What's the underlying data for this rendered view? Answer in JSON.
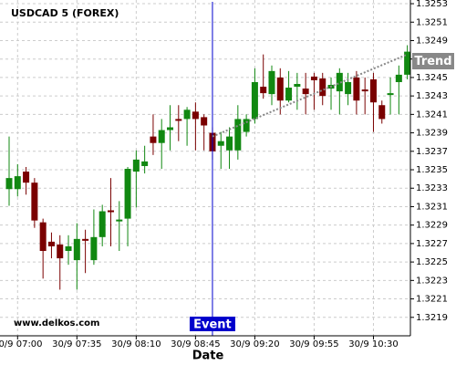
{
  "chart_data": {
    "type": "candlestick",
    "title": "USDCAD 5 (FOREX)",
    "watermark": "www.delkos.com",
    "x_label": "Date",
    "categories": [
      null,
      "30/9 07:00",
      null,
      null,
      null,
      null,
      null,
      null,
      "30/9 07:35",
      null,
      null,
      null,
      null,
      null,
      null,
      "30/9 08:10",
      null,
      null,
      null,
      null,
      null,
      null,
      "30/9 08:45",
      null,
      null,
      null,
      null,
      null,
      null,
      "30/9 09:20",
      null,
      null,
      null,
      null,
      null,
      null,
      "30/9 09:55",
      null,
      null,
      null,
      null,
      null,
      null,
      "30/9 10:30",
      null,
      null,
      null,
      null
    ],
    "open": [
      1.32329,
      1.32329,
      1.32348,
      1.32336,
      1.32293,
      1.32272,
      1.32269,
      1.32262,
      1.32252,
      1.32275,
      1.32252,
      1.32277,
      1.32306,
      1.32294,
      1.32297,
      1.32348,
      1.32354,
      1.32386,
      1.32379,
      1.32393,
      1.32405,
      1.32405,
      1.32413,
      1.32407,
      1.3239,
      1.32376,
      1.32371,
      1.32371,
      1.32391,
      1.32405,
      1.3244,
      1.32432,
      1.3245,
      1.32425,
      1.3244,
      1.32438,
      1.32451,
      1.32449,
      1.32438,
      1.32435,
      1.32432,
      1.3245,
      1.32437,
      1.32448,
      1.3242,
      1.32431,
      1.32445,
      1.32453
    ],
    "high": [
      1.32386,
      1.32356,
      1.32353,
      1.32341,
      1.32297,
      1.32282,
      1.32279,
      1.32279,
      1.32292,
      1.32285,
      1.32307,
      1.32312,
      1.32341,
      1.32316,
      1.32353,
      1.32371,
      1.32376,
      1.3241,
      1.32405,
      1.3242,
      1.3242,
      1.32418,
      1.32423,
      1.3241,
      1.32396,
      1.32391,
      1.32396,
      1.3242,
      1.3241,
      1.3246,
      1.32475,
      1.32463,
      1.3246,
      1.32457,
      1.32455,
      1.32455,
      1.32455,
      1.32455,
      1.3245,
      1.3246,
      1.32455,
      1.32457,
      1.3245,
      1.32455,
      1.32425,
      1.3245,
      1.32463,
      1.32485
    ],
    "low": [
      1.32311,
      1.32321,
      1.32323,
      1.32287,
      1.32232,
      1.32254,
      1.3222,
      1.32247,
      1.3222,
      1.32238,
      1.32247,
      1.32267,
      1.32267,
      1.32262,
      1.32267,
      1.32309,
      1.32346,
      1.32366,
      1.32351,
      1.32371,
      1.32381,
      1.32376,
      1.32371,
      1.32371,
      1.32361,
      1.32351,
      1.32351,
      1.32361,
      1.32386,
      1.324,
      1.32427,
      1.3242,
      1.3241,
      1.32423,
      1.32415,
      1.3241,
      1.32415,
      1.3242,
      1.32415,
      1.3241,
      1.3242,
      1.3241,
      1.3241,
      1.32391,
      1.324,
      1.3241,
      1.3241,
      1.32448
    ],
    "close": [
      1.32341,
      1.32343,
      1.32336,
      1.32295,
      1.32262,
      1.32267,
      1.32254,
      1.32267,
      1.32275,
      1.32273,
      1.32277,
      1.32305,
      1.32304,
      1.32296,
      1.32351,
      1.32361,
      1.32359,
      1.32379,
      1.32393,
      1.32396,
      1.32403,
      1.32415,
      1.32405,
      1.32398,
      1.3237,
      1.32381,
      1.32386,
      1.32405,
      1.32405,
      1.32445,
      1.32433,
      1.32457,
      1.32425,
      1.32439,
      1.32443,
      1.32432,
      1.32447,
      1.3243,
      1.32442,
      1.32455,
      1.32445,
      1.32425,
      1.32435,
      1.32423,
      1.32405,
      1.32433,
      1.32453,
      1.32478
    ],
    "up_color": "#118811",
    "down_color": "#7a0000",
    "ylim": [
      1.3217,
      1.32534
    ],
    "yticks": [
      1.3219,
      1.3221,
      1.3223,
      1.3225,
      1.3227,
      1.3229,
      1.3231,
      1.3233,
      1.3235,
      1.3237,
      1.3239,
      1.3241,
      1.3243,
      1.3245,
      1.3247,
      1.3249,
      1.3251,
      1.3253
    ],
    "grid": true,
    "event": {
      "label": "Event",
      "index": 24,
      "color": "#0000cc"
    },
    "trend": {
      "label": "Trend",
      "index": [
        24,
        47
      ],
      "values": [
        1.32386,
        1.32475
      ],
      "color": "#888888"
    }
  }
}
